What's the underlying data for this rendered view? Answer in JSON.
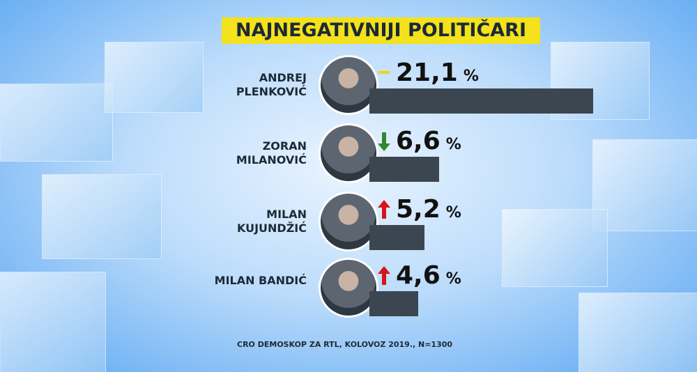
{
  "chart_data": {
    "type": "bar",
    "title": "NAJNEGATIVNIJI POLITIČARI",
    "categories": [
      "ANDREJ PLENKOVIĆ",
      "ZORAN MILANOVIĆ",
      "MILAN KUJUNDŽIĆ",
      "MILAN BANDIĆ"
    ],
    "values": [
      21.1,
      6.6,
      5.2,
      4.6
    ],
    "value_labels": [
      "21,1",
      "6,6",
      "5,2",
      "4,6"
    ],
    "unit": "%",
    "trend": [
      "same",
      "down",
      "up",
      "up"
    ],
    "color": "#3b4650",
    "source": "CRO DEMOSKOP ZA RTL, KOLOVOZ 2019., N=1300"
  }
}
